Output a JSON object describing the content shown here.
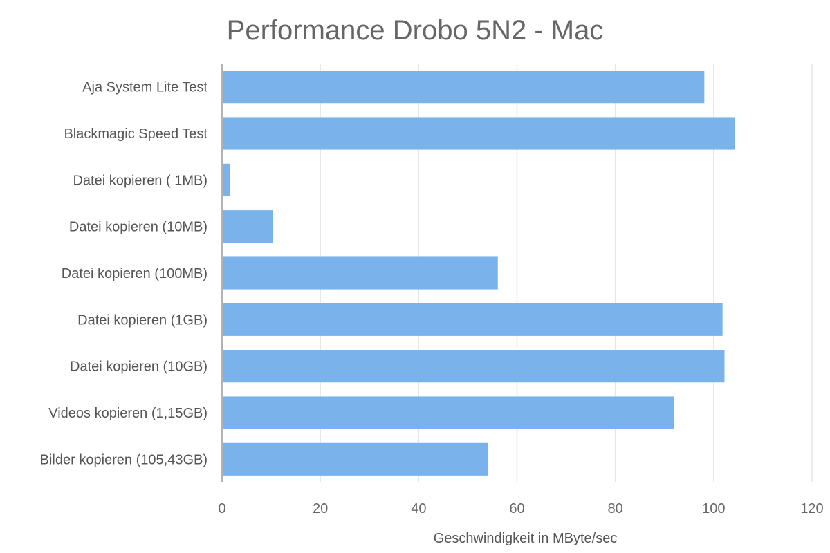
{
  "chart_data": {
    "type": "bar",
    "orientation": "horizontal",
    "title": "Performance Drobo 5N2 - Mac",
    "xlabel": "Geschwindigkeit in MByte/sec",
    "ylabel": "",
    "xlim": [
      0,
      120
    ],
    "xticks": [
      0,
      20,
      40,
      60,
      80,
      100,
      120
    ],
    "grid": true,
    "legend": "none",
    "bar_color": "#7ab3eb",
    "categories": [
      "Aja System Lite Test",
      "Blackmagic Speed Test",
      "Datei kopieren ( 1MB)",
      "Datei kopieren (10MB)",
      "Datei kopieren (100MB)",
      "Datei kopieren (1GB)",
      "Datei kopieren (10GB)",
      "Videos kopieren (1,15GB)",
      "Bilder kopieren (105,43GB)"
    ],
    "values": [
      98.1,
      104.3,
      1.6,
      10.4,
      56.1,
      101.8,
      102.2,
      91.9,
      54.1
    ]
  }
}
